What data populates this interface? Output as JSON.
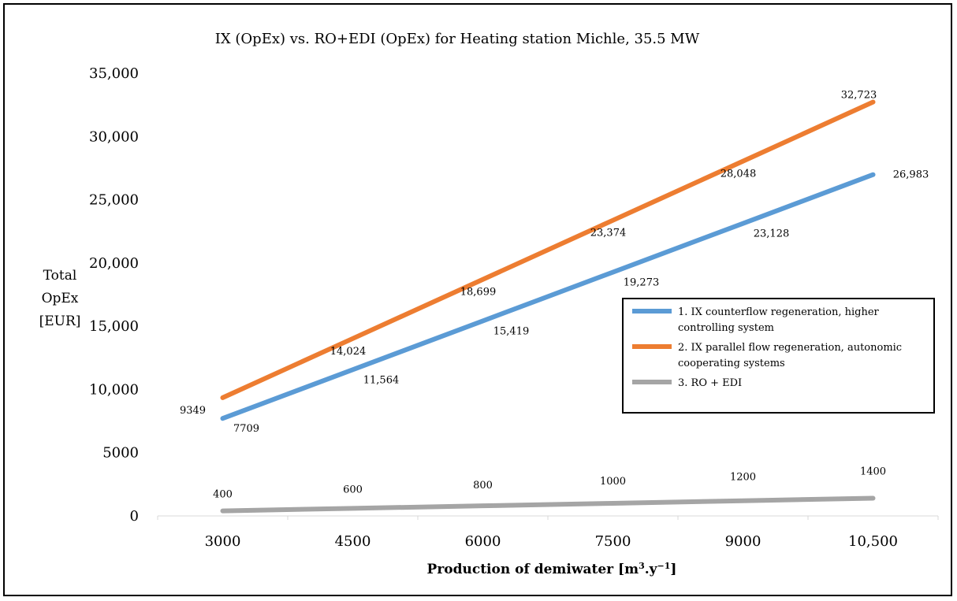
{
  "chart_data": {
    "type": "line",
    "title": "IX (OpEx) vs. RO+EDI (OpEx) for Heating station Michle, 35.5 MW",
    "ylabel_lines": [
      "Total",
      "OpEx",
      "[EUR]"
    ],
    "xlabel": "Production of demiwater [m³.y⁻¹]",
    "xlabel_main": "Production of demiwater [m",
    "xlabel_sup1": "3",
    "xlabel_mid": ".y",
    "xlabel_sup2": "−1",
    "xlabel_end": "]",
    "categories": [
      "3000",
      "4500",
      "6000",
      "7500",
      "9000",
      "10,500"
    ],
    "ylim": [
      0,
      35000
    ],
    "yticks": [
      0,
      5000,
      10000,
      15000,
      20000,
      25000,
      30000,
      35000
    ],
    "ytick_labels": [
      "0",
      "5000",
      "10,000",
      "15,000",
      "20,000",
      "25,000",
      "30,000",
      "35,000"
    ],
    "grid": false,
    "legend_position": "right",
    "series": [
      {
        "name": "1. IX counterflow regeneration, higher controlling system",
        "legend_lines": [
          "1. IX counterflow regeneration, higher",
          "controlling system"
        ],
        "color": "#5b9bd5",
        "values": [
          7709,
          11564,
          15419,
          19273,
          23128,
          26983
        ],
        "labels": [
          "7709",
          "11,564",
          "15,419",
          "19,273",
          "23,128",
          "26,983"
        ]
      },
      {
        "name": "2. IX parallel flow regeneration, autonomic cooperating systems",
        "legend_lines": [
          "2. IX parallel flow regeneration, autonomic",
          "cooperating systems"
        ],
        "color": "#ed7d31",
        "values": [
          9349,
          14024,
          18699,
          23374,
          28048,
          32723
        ],
        "labels": [
          "9349",
          "14,024",
          "18,699",
          "23,374",
          "28,048",
          "32,723"
        ]
      },
      {
        "name": "3. RO + EDI",
        "legend_lines": [
          "3. RO + EDI"
        ],
        "color": "#a5a5a5",
        "values": [
          400,
          600,
          800,
          1000,
          1200,
          1400
        ],
        "labels": [
          "400",
          "600",
          "800",
          "1000",
          "1200",
          "1400"
        ]
      }
    ]
  }
}
